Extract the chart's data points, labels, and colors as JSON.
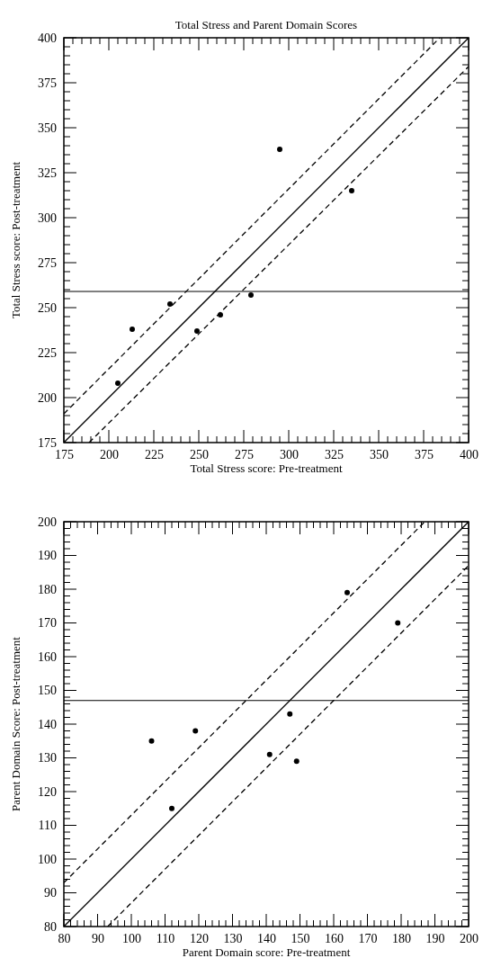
{
  "chart_data": [
    {
      "type": "scatter",
      "title": "Total Stress and Parent Domain Scores",
      "xlabel": "Total Stress score: Pre-treatment",
      "ylabel": "Total Stress score: Post-treatment",
      "xlim": [
        175,
        400
      ],
      "ylim": [
        175,
        400
      ],
      "xticks": [
        175,
        {
          "value": 180,
          "label": null
        },
        {
          "value": 185,
          "label": null
        },
        {
          "value": 190,
          "label": null
        },
        {
          "value": 195,
          "label": null
        },
        200,
        {
          "value": 205,
          "label": null
        },
        {
          "value": 210,
          "label": null
        },
        {
          "value": 215,
          "label": null
        },
        {
          "value": 220,
          "label": null
        },
        225,
        {
          "value": 230,
          "label": null
        },
        {
          "value": 235,
          "label": null
        },
        {
          "value": 240,
          "label": null
        },
        {
          "value": 245,
          "label": null
        },
        250,
        {
          "value": 255,
          "label": null
        },
        {
          "value": 260,
          "label": null
        },
        {
          "value": 265,
          "label": null
        },
        {
          "value": 270,
          "label": null
        },
        275,
        {
          "value": 280,
          "label": null
        },
        {
          "value": 285,
          "label": null
        },
        {
          "value": 290,
          "label": null
        },
        {
          "value": 295,
          "label": null
        },
        300,
        {
          "value": 305,
          "label": null
        },
        {
          "value": 310,
          "label": null
        },
        {
          "value": 315,
          "label": null
        },
        {
          "value": 320,
          "label": null
        },
        325,
        {
          "value": 330,
          "label": null
        },
        {
          "value": 335,
          "label": null
        },
        {
          "value": 340,
          "label": null
        },
        {
          "value": 345,
          "label": null
        },
        350,
        {
          "value": 355,
          "label": null
        },
        {
          "value": 360,
          "label": null
        },
        {
          "value": 365,
          "label": null
        },
        {
          "value": 370,
          "label": null
        },
        375,
        {
          "value": 380,
          "label": null
        },
        {
          "value": 385,
          "label": null
        },
        {
          "value": 390,
          "label": null
        },
        {
          "value": 395,
          "label": null
        },
        400
      ],
      "yticks": [
        175,
        {
          "value": 180,
          "label": null
        },
        {
          "value": 185,
          "label": null
        },
        {
          "value": 190,
          "label": null
        },
        {
          "value": 195,
          "label": null
        },
        200,
        {
          "value": 205,
          "label": null
        },
        {
          "value": 210,
          "label": null
        },
        {
          "value": 215,
          "label": null
        },
        {
          "value": 220,
          "label": null
        },
        225,
        {
          "value": 230,
          "label": null
        },
        {
          "value": 235,
          "label": null
        },
        {
          "value": 240,
          "label": null
        },
        {
          "value": 245,
          "label": null
        },
        250,
        {
          "value": 255,
          "label": null
        },
        {
          "value": 260,
          "label": null
        },
        {
          "value": 265,
          "label": null
        },
        {
          "value": 270,
          "label": null
        },
        275,
        {
          "value": 280,
          "label": null
        },
        {
          "value": 285,
          "label": null
        },
        {
          "value": 290,
          "label": null
        },
        {
          "value": 295,
          "label": null
        },
        300,
        {
          "value": 305,
          "label": null
        },
        {
          "value": 310,
          "label": null
        },
        {
          "value": 315,
          "label": null
        },
        {
          "value": 320,
          "label": null
        },
        325,
        {
          "value": 330,
          "label": null
        },
        {
          "value": 335,
          "label": null
        },
        {
          "value": 340,
          "label": null
        },
        {
          "value": 345,
          "label": null
        },
        350,
        {
          "value": 355,
          "label": null
        },
        {
          "value": 360,
          "label": null
        },
        {
          "value": 365,
          "label": null
        },
        {
          "value": 370,
          "label": null
        },
        375,
        {
          "value": 380,
          "label": null
        },
        {
          "value": 385,
          "label": null
        },
        {
          "value": 390,
          "label": null
        },
        {
          "value": 395,
          "label": null
        },
        400
      ],
      "series": [
        {
          "marker": "circle",
          "color": "#000000",
          "x": [
            205,
            213,
            234,
            249,
            262,
            279,
            295,
            335
          ],
          "values": [
            208,
            238,
            252,
            237,
            246,
            257,
            338,
            315
          ]
        },
        {
          "type": "line",
          "color": "#000000",
          "line_style": "solid",
          "x": [
            175,
            400
          ],
          "values": [
            175,
            400
          ]
        },
        {
          "type": "line",
          "color": "#000000",
          "line_style": "dashed",
          "x": [
            175,
            384
          ],
          "values": [
            191,
            400
          ]
        },
        {
          "type": "line",
          "color": "#000000",
          "line_style": "dashed",
          "x": [
            189,
            400
          ],
          "values": [
            175,
            384
          ]
        }
      ],
      "ref_lines": [
        {
          "axis": "y",
          "value": 259,
          "color": "#000000"
        }
      ]
    },
    {
      "type": "scatter",
      "xlabel": "Parent Domain score: Pre-treatment",
      "ylabel": "Parent Domain Score: Post-treatment",
      "xlim": [
        80,
        200
      ],
      "ylim": [
        80,
        200
      ],
      "xticks": [
        80,
        {
          "value": 82,
          "label": null
        },
        {
          "value": 84,
          "label": null
        },
        {
          "value": 86,
          "label": null
        },
        {
          "value": 88,
          "label": null
        },
        90,
        {
          "value": 92,
          "label": null
        },
        {
          "value": 94,
          "label": null
        },
        {
          "value": 96,
          "label": null
        },
        {
          "value": 98,
          "label": null
        },
        100,
        {
          "value": 102,
          "label": null
        },
        {
          "value": 104,
          "label": null
        },
        {
          "value": 106,
          "label": null
        },
        {
          "value": 108,
          "label": null
        },
        110,
        {
          "value": 112,
          "label": null
        },
        {
          "value": 114,
          "label": null
        },
        {
          "value": 116,
          "label": null
        },
        {
          "value": 118,
          "label": null
        },
        120,
        {
          "value": 122,
          "label": null
        },
        {
          "value": 124,
          "label": null
        },
        {
          "value": 126,
          "label": null
        },
        {
          "value": 128,
          "label": null
        },
        130,
        {
          "value": 132,
          "label": null
        },
        {
          "value": 134,
          "label": null
        },
        {
          "value": 136,
          "label": null
        },
        {
          "value": 138,
          "label": null
        },
        140,
        {
          "value": 142,
          "label": null
        },
        {
          "value": 144,
          "label": null
        },
        {
          "value": 146,
          "label": null
        },
        {
          "value": 148,
          "label": null
        },
        150,
        {
          "value": 152,
          "label": null
        },
        {
          "value": 154,
          "label": null
        },
        {
          "value": 156,
          "label": null
        },
        {
          "value": 158,
          "label": null
        },
        160,
        {
          "value": 162,
          "label": null
        },
        {
          "value": 164,
          "label": null
        },
        {
          "value": 166,
          "label": null
        },
        {
          "value": 168,
          "label": null
        },
        170,
        {
          "value": 172,
          "label": null
        },
        {
          "value": 174,
          "label": null
        },
        {
          "value": 176,
          "label": null
        },
        {
          "value": 178,
          "label": null
        },
        180,
        {
          "value": 182,
          "label": null
        },
        {
          "value": 184,
          "label": null
        },
        {
          "value": 186,
          "label": null
        },
        {
          "value": 188,
          "label": null
        },
        190,
        {
          "value": 192,
          "label": null
        },
        {
          "value": 194,
          "label": null
        },
        {
          "value": 196,
          "label": null
        },
        {
          "value": 198,
          "label": null
        },
        200
      ],
      "yticks": [
        80,
        {
          "value": 82,
          "label": null
        },
        {
          "value": 84,
          "label": null
        },
        {
          "value": 86,
          "label": null
        },
        {
          "value": 88,
          "label": null
        },
        90,
        {
          "value": 92,
          "label": null
        },
        {
          "value": 94,
          "label": null
        },
        {
          "value": 96,
          "label": null
        },
        {
          "value": 98,
          "label": null
        },
        100,
        {
          "value": 102,
          "label": null
        },
        {
          "value": 104,
          "label": null
        },
        {
          "value": 106,
          "label": null
        },
        {
          "value": 108,
          "label": null
        },
        110,
        {
          "value": 112,
          "label": null
        },
        {
          "value": 114,
          "label": null
        },
        {
          "value": 116,
          "label": null
        },
        {
          "value": 118,
          "label": null
        },
        120,
        {
          "value": 122,
          "label": null
        },
        {
          "value": 124,
          "label": null
        },
        {
          "value": 126,
          "label": null
        },
        {
          "value": 128,
          "label": null
        },
        130,
        {
          "value": 132,
          "label": null
        },
        {
          "value": 134,
          "label": null
        },
        {
          "value": 136,
          "label": null
        },
        {
          "value": 138,
          "label": null
        },
        140,
        {
          "value": 142,
          "label": null
        },
        {
          "value": 144,
          "label": null
        },
        {
          "value": 146,
          "label": null
        },
        {
          "value": 148,
          "label": null
        },
        150,
        {
          "value": 152,
          "label": null
        },
        {
          "value": 154,
          "label": null
        },
        {
          "value": 156,
          "label": null
        },
        {
          "value": 158,
          "label": null
        },
        160,
        {
          "value": 162,
          "label": null
        },
        {
          "value": 164,
          "label": null
        },
        {
          "value": 166,
          "label": null
        },
        {
          "value": 168,
          "label": null
        },
        170,
        {
          "value": 172,
          "label": null
        },
        {
          "value": 174,
          "label": null
        },
        {
          "value": 176,
          "label": null
        },
        {
          "value": 178,
          "label": null
        },
        180,
        {
          "value": 182,
          "label": null
        },
        {
          "value": 184,
          "label": null
        },
        {
          "value": 186,
          "label": null
        },
        {
          "value": 188,
          "label": null
        },
        190,
        {
          "value": 192,
          "label": null
        },
        {
          "value": 194,
          "label": null
        },
        {
          "value": 196,
          "label": null
        },
        {
          "value": 198,
          "label": null
        },
        200
      ],
      "series": [
        {
          "marker": "circle",
          "color": "#000000",
          "x": [
            106,
            112,
            119,
            141,
            147,
            149,
            164,
            179
          ],
          "values": [
            135,
            115,
            138,
            131,
            143,
            129,
            179,
            170
          ]
        },
        {
          "type": "line",
          "color": "#000000",
          "line_style": "solid",
          "x": [
            80,
            200
          ],
          "values": [
            80,
            200
          ]
        },
        {
          "type": "line",
          "color": "#000000",
          "line_style": "dashed",
          "x": [
            80,
            187
          ],
          "values": [
            93,
            200
          ]
        },
        {
          "type": "line",
          "color": "#000000",
          "line_style": "dashed",
          "x": [
            93,
            200
          ],
          "values": [
            80,
            187
          ]
        }
      ],
      "ref_lines": [
        {
          "axis": "y",
          "value": 147,
          "color": "#000000"
        }
      ]
    }
  ]
}
